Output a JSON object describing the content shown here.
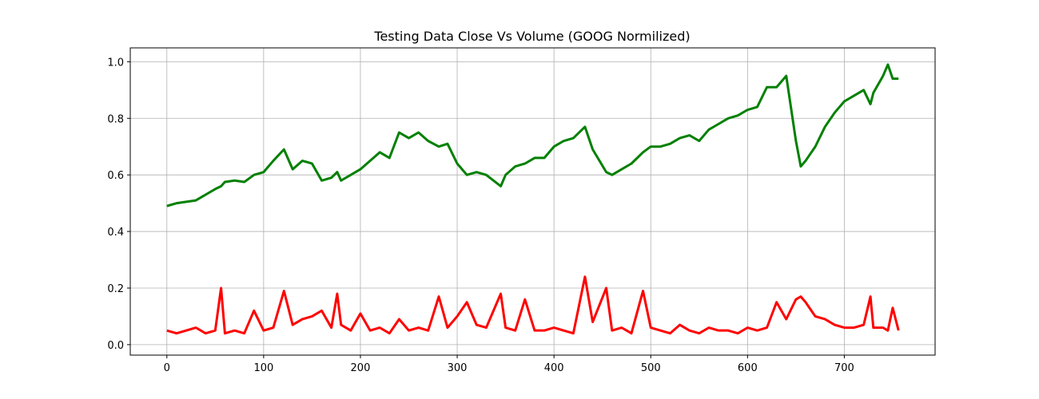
{
  "chart_data": {
    "type": "line",
    "title": "Testing Data Close Vs Volume (GOOG Normilized)",
    "x": [
      0,
      10,
      20,
      30,
      40,
      50,
      56,
      60,
      70,
      80,
      90,
      100,
      110,
      121,
      130,
      140,
      150,
      160,
      170,
      176,
      180,
      190,
      200,
      210,
      220,
      230,
      240,
      250,
      260,
      270,
      281,
      290,
      300,
      310,
      320,
      330,
      345,
      350,
      360,
      370,
      380,
      390,
      400,
      410,
      420,
      432,
      440,
      454,
      460,
      470,
      480,
      492,
      500,
      510,
      520,
      530,
      540,
      550,
      560,
      570,
      580,
      590,
      600,
      610,
      620,
      630,
      640,
      650,
      655,
      660,
      670,
      680,
      690,
      700,
      710,
      720,
      727,
      730,
      740,
      745,
      750,
      756
    ],
    "series": [
      {
        "color": "#008000",
        "values": [
          0.49,
          0.5,
          0.505,
          0.51,
          0.53,
          0.55,
          0.56,
          0.575,
          0.58,
          0.575,
          0.6,
          0.61,
          0.65,
          0.69,
          0.62,
          0.65,
          0.64,
          0.58,
          0.59,
          0.61,
          0.58,
          0.6,
          0.62,
          0.65,
          0.68,
          0.66,
          0.75,
          0.73,
          0.75,
          0.72,
          0.7,
          0.71,
          0.64,
          0.6,
          0.61,
          0.6,
          0.56,
          0.6,
          0.63,
          0.64,
          0.66,
          0.66,
          0.7,
          0.72,
          0.73,
          0.77,
          0.69,
          0.61,
          0.6,
          0.62,
          0.64,
          0.68,
          0.7,
          0.7,
          0.71,
          0.73,
          0.74,
          0.72,
          0.76,
          0.78,
          0.8,
          0.81,
          0.83,
          0.84,
          0.91,
          0.91,
          0.95,
          0.72,
          0.63,
          0.65,
          0.7,
          0.77,
          0.82,
          0.86,
          0.88,
          0.9,
          0.85,
          0.89,
          0.95,
          0.99,
          0.94,
          0.94
        ]
      },
      {
        "color": "#ff0000",
        "values": [
          0.05,
          0.04,
          0.05,
          0.06,
          0.04,
          0.05,
          0.2,
          0.04,
          0.05,
          0.04,
          0.12,
          0.05,
          0.06,
          0.19,
          0.07,
          0.09,
          0.1,
          0.12,
          0.06,
          0.18,
          0.07,
          0.05,
          0.11,
          0.05,
          0.06,
          0.04,
          0.09,
          0.05,
          0.06,
          0.05,
          0.17,
          0.06,
          0.1,
          0.15,
          0.07,
          0.06,
          0.18,
          0.06,
          0.05,
          0.16,
          0.05,
          0.05,
          0.06,
          0.05,
          0.04,
          0.24,
          0.08,
          0.2,
          0.05,
          0.06,
          0.04,
          0.19,
          0.06,
          0.05,
          0.04,
          0.07,
          0.05,
          0.04,
          0.06,
          0.05,
          0.05,
          0.04,
          0.06,
          0.05,
          0.06,
          0.15,
          0.09,
          0.16,
          0.17,
          0.15,
          0.1,
          0.09,
          0.07,
          0.06,
          0.06,
          0.07,
          0.17,
          0.06,
          0.06,
          0.05,
          0.13,
          0.05
        ]
      }
    ],
    "xlim": [
      -37.8,
      793.8
    ],
    "xticks": [
      0,
      100,
      200,
      300,
      400,
      500,
      600,
      700
    ],
    "ylim": [
      -0.037,
      1.049
    ],
    "yticks": [
      {
        "value": 0,
        "label": "0.0"
      },
      0.2,
      0.4,
      0.6,
      0.8,
      {
        "value": 1,
        "label": "1.0"
      }
    ],
    "grid": true
  }
}
